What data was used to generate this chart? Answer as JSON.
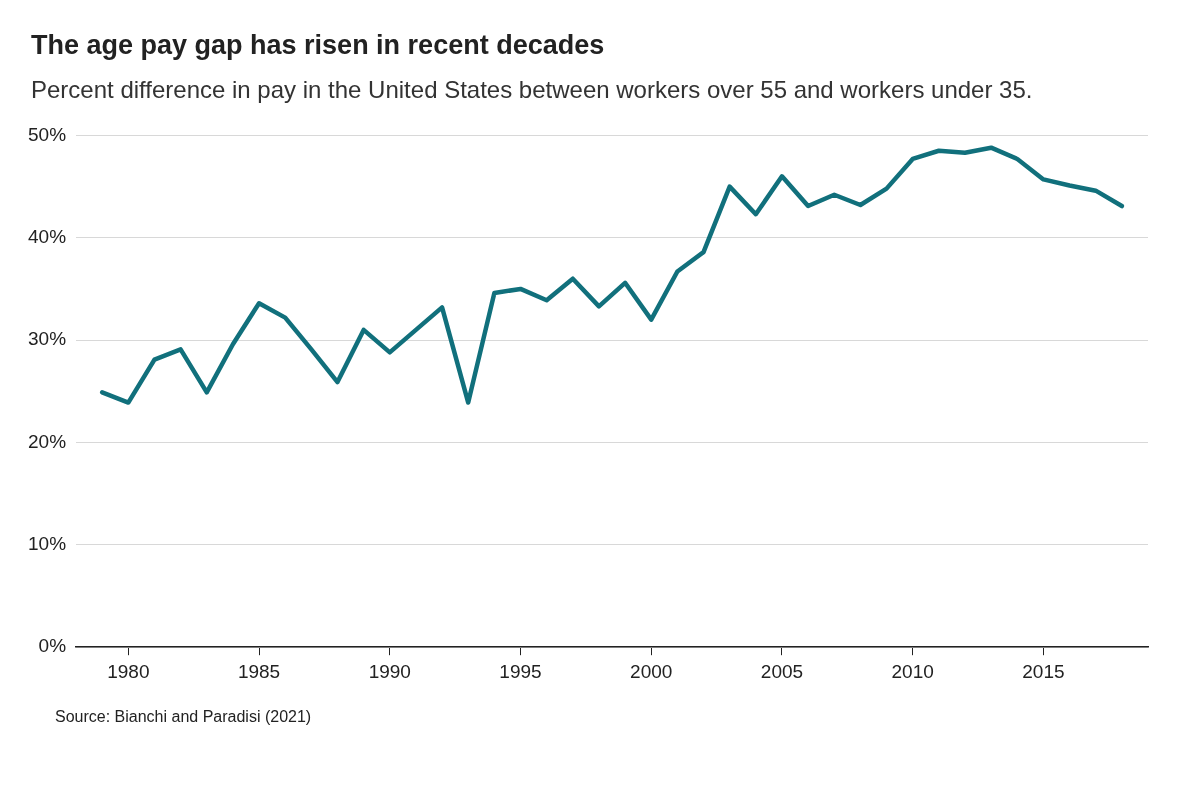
{
  "chart_data": {
    "type": "line",
    "title": "The age pay gap has risen in recent decades",
    "subtitle": "Percent difference in pay in the United States between workers over 55 and workers under 35.",
    "annotations": [
      "Source: Bianchi and Paradisi (2021)"
    ],
    "x": [
      1979,
      1980,
      1981,
      1982,
      1983,
      1984,
      1985,
      1986,
      1987,
      1988,
      1989,
      1990,
      1991,
      1992,
      1993,
      1994,
      1995,
      1996,
      1997,
      1998,
      1999,
      2000,
      2001,
      2002,
      2003,
      2004,
      2005,
      2006,
      2007,
      2008,
      2009,
      2010,
      2011,
      2012,
      2013,
      2014,
      2015,
      2016,
      2017,
      2018
    ],
    "series": [
      {
        "color": "#11707c",
        "values": [
          24.9,
          23.9,
          28.1,
          29.1,
          24.9,
          29.6,
          33.6,
          32.2,
          29.1,
          25.9,
          31.0,
          28.8,
          31.0,
          33.2,
          23.9,
          34.6,
          35.0,
          33.9,
          36.0,
          33.3,
          35.6,
          32.0,
          36.7,
          38.6,
          45.0,
          42.3,
          46.0,
          43.1,
          44.2,
          43.2,
          44.8,
          47.7,
          48.5,
          48.3,
          48.8,
          47.7,
          45.7,
          45.1,
          44.6,
          43.1
        ]
      }
    ],
    "xlim": [
      1978,
      2019
    ],
    "xticks": [
      1980,
      1985,
      1990,
      1995,
      2000,
      2005,
      2010,
      2015
    ],
    "ylim": [
      0,
      50
    ],
    "yticks": [
      {
        "value": 0,
        "label": "0%"
      },
      {
        "value": 10,
        "label": "10%"
      },
      {
        "value": 20,
        "label": "20%"
      },
      {
        "value": 30,
        "label": "30%"
      },
      {
        "value": 40,
        "label": "40%"
      },
      {
        "value": 50,
        "label": "50%"
      }
    ],
    "grid": "y",
    "legend": false,
    "marker": "none",
    "line_style": "solid"
  }
}
